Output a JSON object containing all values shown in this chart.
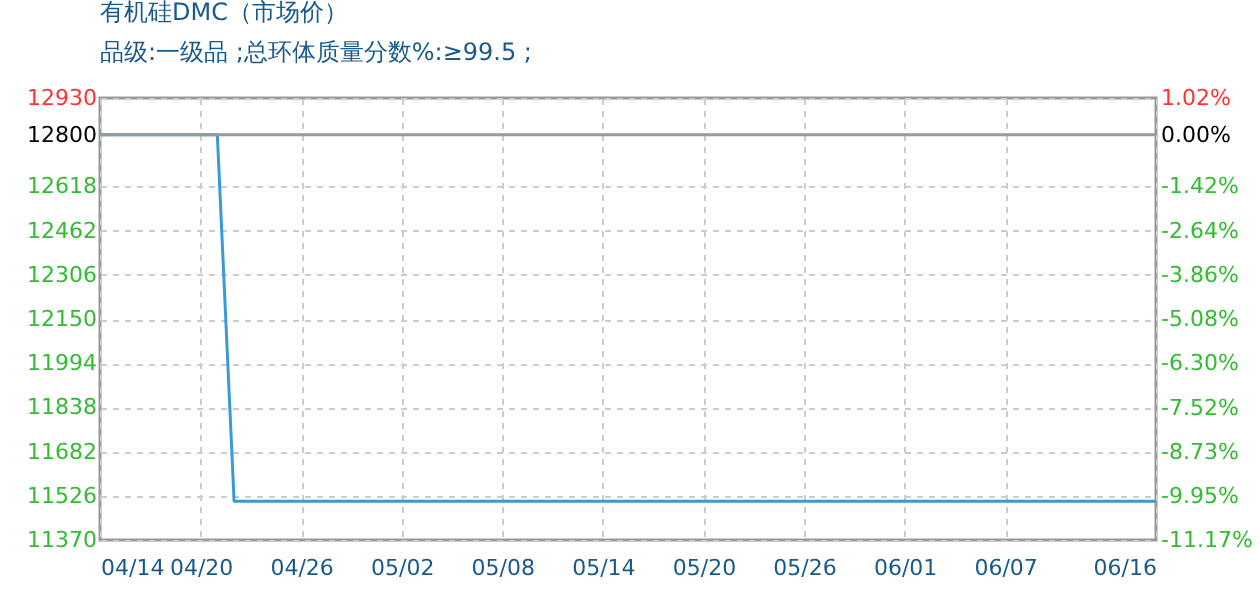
{
  "chart_data": {
    "type": "line",
    "title": "有机硅DMC（市场价）",
    "subtitle": "品级:一级品 ;总环体质量分数%:≥99.5 ;",
    "x": [
      "--04-14",
      "--04-21",
      "--04-22",
      "--06-16"
    ],
    "series": [
      {
        "color": "#3a9ad9",
        "values": [
          12800,
          12800,
          11507,
          11507
        ]
      }
    ],
    "xlim": [
      "--04-14",
      "--06-16"
    ],
    "xticks": [
      {
        "value": "--04-14",
        "label": "04/14"
      },
      {
        "value": "--04-20",
        "label": "04/20"
      },
      {
        "value": "--04-26",
        "label": "04/26"
      },
      {
        "value": "--05-02",
        "label": "05/02"
      },
      {
        "value": "--05-08",
        "label": "05/08"
      },
      {
        "value": "--05-14",
        "label": "05/14"
      },
      {
        "value": "--05-20",
        "label": "05/20"
      },
      {
        "value": "--05-26",
        "label": "05/26"
      },
      {
        "value": "--06-01",
        "label": "06/01"
      },
      {
        "value": "--06-07",
        "label": "06/07"
      },
      {
        "value": "--06-16",
        "label": "06/16"
      }
    ],
    "ylim": [
      11370,
      12930
    ],
    "yticks": [
      11370,
      11526,
      11682,
      11838,
      11994,
      12150,
      12306,
      12462,
      12618,
      12800,
      12930
    ],
    "y2lim": [
      -11.17,
      1.02
    ],
    "y2ticks": [
      {
        "value": -11.17,
        "label": "-11.17%"
      },
      {
        "value": -9.95,
        "label": "-9.95%"
      },
      {
        "value": -8.73,
        "label": "-8.73%"
      },
      {
        "value": -7.52,
        "label": "-7.52%"
      },
      {
        "value": -6.3,
        "label": "-6.30%"
      },
      {
        "value": -5.08,
        "label": "-5.08%"
      },
      {
        "value": -3.86,
        "label": "-3.86%"
      },
      {
        "value": -2.64,
        "label": "-2.64%"
      },
      {
        "value": -1.42,
        "label": "-1.42%"
      },
      {
        "value": 0,
        "label": "0.00%"
      },
      {
        "value": 1.02,
        "label": "1.02%"
      }
    ],
    "ref_lines": [
      {
        "axis": "y",
        "value": 12800,
        "color": "#999999"
      }
    ],
    "grid": true
  }
}
